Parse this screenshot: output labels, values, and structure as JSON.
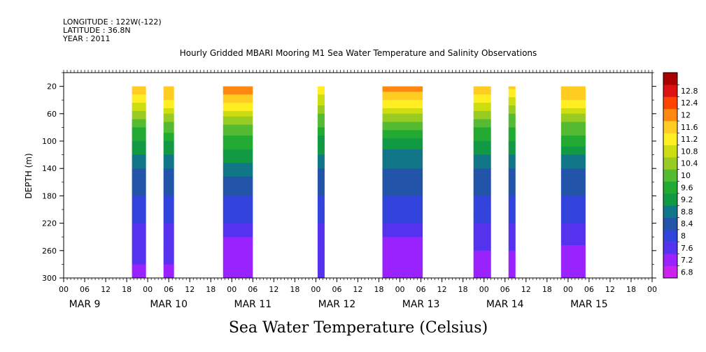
{
  "header": {
    "longitude": "LONGITUDE : 122W(-122)",
    "latitude": "LATITUDE : 36.8N",
    "year": "YEAR : 2011",
    "title": "Hourly Gridded MBARI Mooring M1 Sea Water Temperature and Salinity Observations"
  },
  "footer": {
    "variable_label": "Sea Water Temperature (Celsius)"
  },
  "chart_data": {
    "type": "heatmap",
    "title": "Hourly Gridded MBARI Mooring M1 Sea Water Temperature and Salinity Observations",
    "xlabel": "",
    "ylabel": "DEPTH (m)",
    "colorbar_label": "Sea Water Temperature (Celsius)",
    "x_unit": "hours since MAR 9 2011 00:00",
    "xlim": [
      0,
      168
    ],
    "ylim": [
      300,
      0
    ],
    "y_ticks": [
      20,
      60,
      100,
      140,
      180,
      220,
      260,
      300
    ],
    "x_hour_ticks": [
      "00",
      "06",
      "12",
      "18",
      "00",
      "06",
      "12",
      "18",
      "00",
      "06",
      "12",
      "18",
      "00",
      "06",
      "12",
      "18",
      "00",
      "06",
      "12",
      "18",
      "00",
      "06",
      "12",
      "18",
      "00",
      "06",
      "12",
      "18",
      "00"
    ],
    "day_labels": [
      "MAR  9",
      "MAR 10",
      "MAR 11",
      "MAR 12",
      "MAR 13",
      "MAR 14",
      "MAR 15"
    ],
    "depth_range_observed": [
      20,
      300
    ],
    "data_segments": [
      {
        "start_hour": 19.5,
        "end_hour": 23.5,
        "surface_temp": 11.4,
        "profile": [
          [
            20,
            11.4
          ],
          [
            40,
            11.0
          ],
          [
            60,
            10.2
          ],
          [
            80,
            9.6
          ],
          [
            100,
            9.2
          ],
          [
            120,
            8.8
          ],
          [
            140,
            8.4
          ],
          [
            180,
            8.0
          ],
          [
            220,
            7.6
          ],
          [
            260,
            7.4
          ],
          [
            280,
            7.2
          ],
          [
            300,
            7.0
          ]
        ]
      },
      {
        "start_hour": 28.5,
        "end_hour": 31.5,
        "surface_temp": 11.6,
        "profile": [
          [
            20,
            11.6
          ],
          [
            40,
            11.2
          ],
          [
            60,
            10.4
          ],
          [
            80,
            9.8
          ],
          [
            100,
            9.2
          ],
          [
            120,
            8.8
          ],
          [
            140,
            8.4
          ],
          [
            180,
            8.0
          ],
          [
            220,
            7.6
          ],
          [
            260,
            7.4
          ],
          [
            280,
            7.2
          ],
          [
            300,
            7.0
          ]
        ]
      },
      {
        "start_hour": 45.5,
        "end_hour": 54.0,
        "surface_temp": 11.8,
        "profile": [
          [
            20,
            11.8
          ],
          [
            40,
            11.4
          ],
          [
            60,
            10.6
          ],
          [
            80,
            9.8
          ],
          [
            100,
            9.4
          ],
          [
            120,
            9.0
          ],
          [
            140,
            8.6
          ],
          [
            180,
            8.0
          ],
          [
            220,
            7.6
          ],
          [
            240,
            7.2
          ],
          [
            260,
            7.0
          ],
          [
            300,
            6.8
          ]
        ]
      },
      {
        "start_hour": 72.5,
        "end_hour": 74.5,
        "surface_temp": 11.2,
        "profile": [
          [
            20,
            11.2
          ],
          [
            40,
            10.6
          ],
          [
            60,
            10.0
          ],
          [
            80,
            9.6
          ],
          [
            100,
            9.0
          ],
          [
            120,
            8.8
          ],
          [
            140,
            8.4
          ],
          [
            180,
            8.0
          ],
          [
            220,
            7.6
          ],
          [
            260,
            7.4
          ],
          [
            300,
            7.2
          ]
        ]
      },
      {
        "start_hour": 91.0,
        "end_hour": 102.5,
        "surface_temp": 11.8,
        "profile": [
          [
            20,
            11.8
          ],
          [
            40,
            11.2
          ],
          [
            60,
            10.4
          ],
          [
            80,
            9.8
          ],
          [
            100,
            9.0
          ],
          [
            120,
            8.6
          ],
          [
            160,
            8.2
          ],
          [
            200,
            7.8
          ],
          [
            220,
            7.6
          ],
          [
            240,
            7.2
          ],
          [
            260,
            7.0
          ],
          [
            300,
            6.8
          ]
        ]
      },
      {
        "start_hour": 117.0,
        "end_hour": 122.0,
        "surface_temp": 11.6,
        "profile": [
          [
            20,
            11.6
          ],
          [
            40,
            11.0
          ],
          [
            60,
            10.2
          ],
          [
            80,
            9.6
          ],
          [
            100,
            9.2
          ],
          [
            120,
            8.8
          ],
          [
            140,
            8.4
          ],
          [
            180,
            8.0
          ],
          [
            220,
            7.6
          ],
          [
            260,
            7.2
          ],
          [
            300,
            7.0
          ]
        ]
      },
      {
        "start_hour": 127.0,
        "end_hour": 129.0,
        "surface_temp": 11.4,
        "profile": [
          [
            20,
            11.4
          ],
          [
            40,
            10.6
          ],
          [
            60,
            10.0
          ],
          [
            80,
            9.6
          ],
          [
            100,
            9.2
          ],
          [
            120,
            8.8
          ],
          [
            140,
            8.4
          ],
          [
            180,
            8.0
          ],
          [
            220,
            7.6
          ],
          [
            260,
            7.2
          ],
          [
            300,
            7.0
          ]
        ]
      },
      {
        "start_hour": 142.0,
        "end_hour": 149.0,
        "surface_temp": 11.6,
        "profile": [
          [
            20,
            11.6
          ],
          [
            40,
            11.2
          ],
          [
            60,
            10.4
          ],
          [
            80,
            9.8
          ],
          [
            100,
            9.4
          ],
          [
            120,
            8.8
          ],
          [
            140,
            8.4
          ],
          [
            180,
            8.0
          ],
          [
            220,
            7.6
          ],
          [
            250,
            7.2
          ],
          [
            300,
            7.0
          ]
        ]
      }
    ],
    "colorbar": {
      "levels": [
        6.8,
        7.2,
        7.6,
        8,
        8.4,
        8.8,
        9.2,
        9.6,
        10,
        10.4,
        10.8,
        11.2,
        11.6,
        12,
        12.4,
        12.8
      ],
      "labels": [
        "6.8",
        "7.2",
        "7.6",
        "8",
        "8.4",
        "8.8",
        "9.2",
        "9.6",
        "10",
        "10.4",
        "10.8",
        "11.2",
        "11.6",
        "12",
        "12.4",
        "12.8"
      ],
      "colors": [
        "#cc22ee",
        "#9922ff",
        "#5533ee",
        "#3344dd",
        "#2255aa",
        "#117788",
        "#119944",
        "#22aa33",
        "#55bb33",
        "#99cc22",
        "#ccdd11",
        "#ffee22",
        "#ffcc22",
        "#ff8811",
        "#ff4400",
        "#dd1111",
        "#aa0000"
      ]
    }
  }
}
